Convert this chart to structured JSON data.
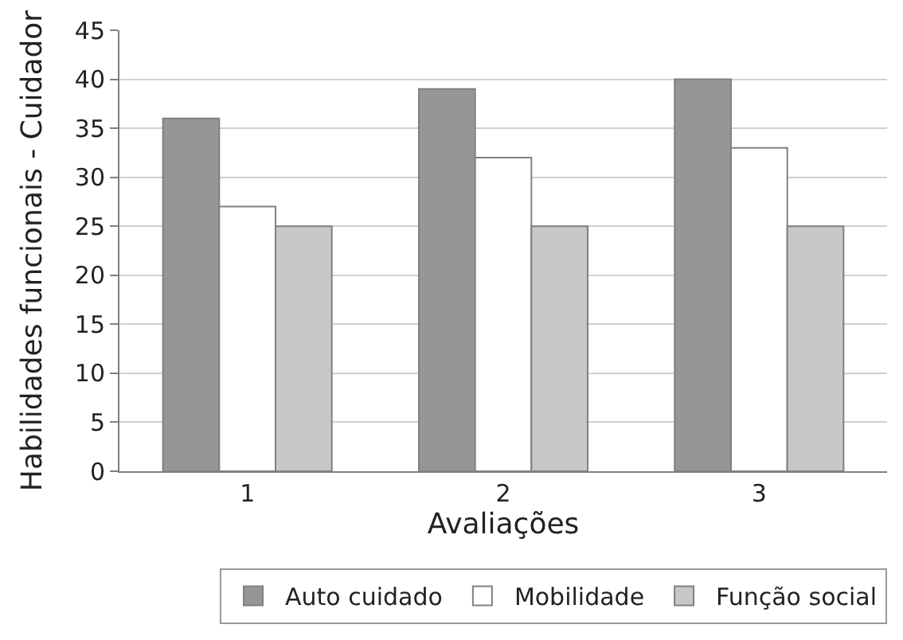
{
  "chart_data": {
    "type": "bar",
    "xlabel": "Avaliações",
    "ylabel": "Habilidades funcionais - Cuidador",
    "categories": [
      "1",
      "2",
      "3"
    ],
    "series": [
      {
        "name": "Auto cuidado",
        "color": "#969696",
        "values": [
          36,
          39,
          40
        ]
      },
      {
        "name": "Mobilidade",
        "color": "#ffffff",
        "values": [
          27,
          32,
          33
        ]
      },
      {
        "name": "Função social",
        "color": "#c8c8c8",
        "values": [
          25,
          25,
          25
        ]
      }
    ],
    "ylim": [
      0,
      45
    ],
    "yticks": [
      0,
      5,
      10,
      15,
      20,
      25,
      30,
      35,
      40,
      45
    ],
    "grid": "y",
    "legend": "bottom"
  }
}
